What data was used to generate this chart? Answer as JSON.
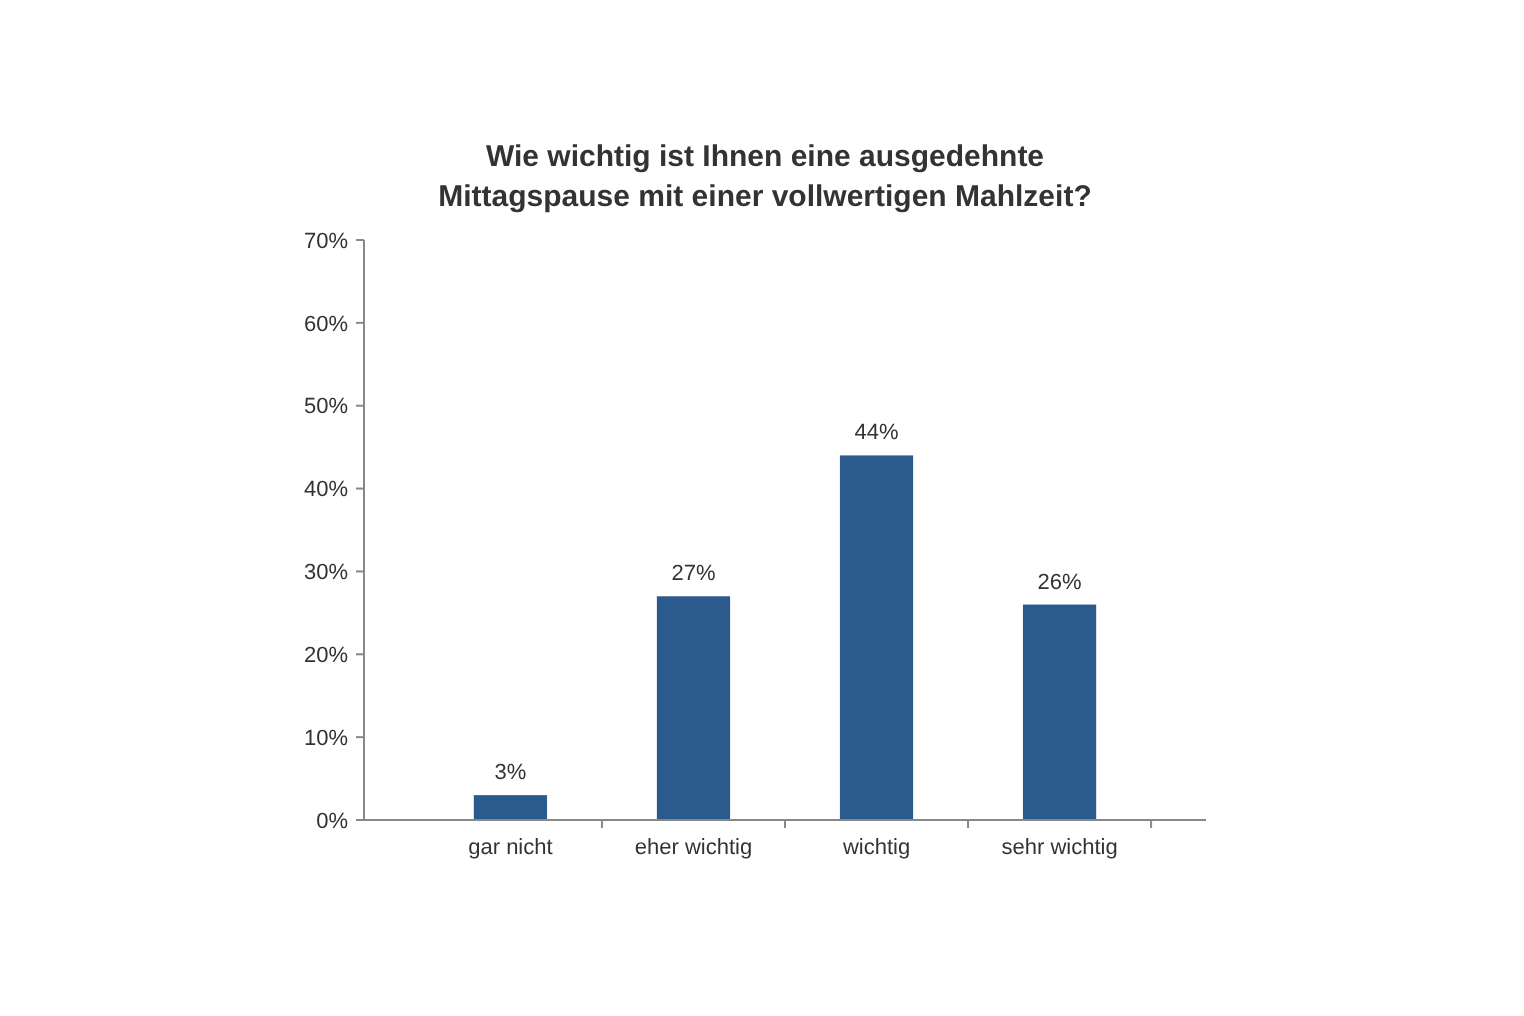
{
  "chart_data": {
    "type": "bar",
    "title": "Wie wichtig ist Ihnen eine ausgedehnte\nMittagspause mit einer vollwertigen Mahlzeit?",
    "categories": [
      "gar nicht",
      "eher wichtig",
      "wichtig",
      "sehr wichtig"
    ],
    "values": [
      3,
      27,
      44,
      26
    ],
    "color": "#2b5a8e",
    "data_labels": true,
    "value_labels": [
      "3%",
      "27%",
      "44%",
      "26%"
    ],
    "ylim": [
      0,
      70
    ],
    "yticks": [
      {
        "value": 0,
        "label": "0%"
      },
      {
        "value": 10,
        "label": "10%"
      },
      {
        "value": 20,
        "label": "20%"
      },
      {
        "value": 30,
        "label": "30%"
      },
      {
        "value": 40,
        "label": "40%"
      },
      {
        "value": 50,
        "label": "50%"
      },
      {
        "value": 60,
        "label": "60%"
      },
      {
        "value": 70,
        "label": "70%"
      }
    ],
    "grid": false
  }
}
